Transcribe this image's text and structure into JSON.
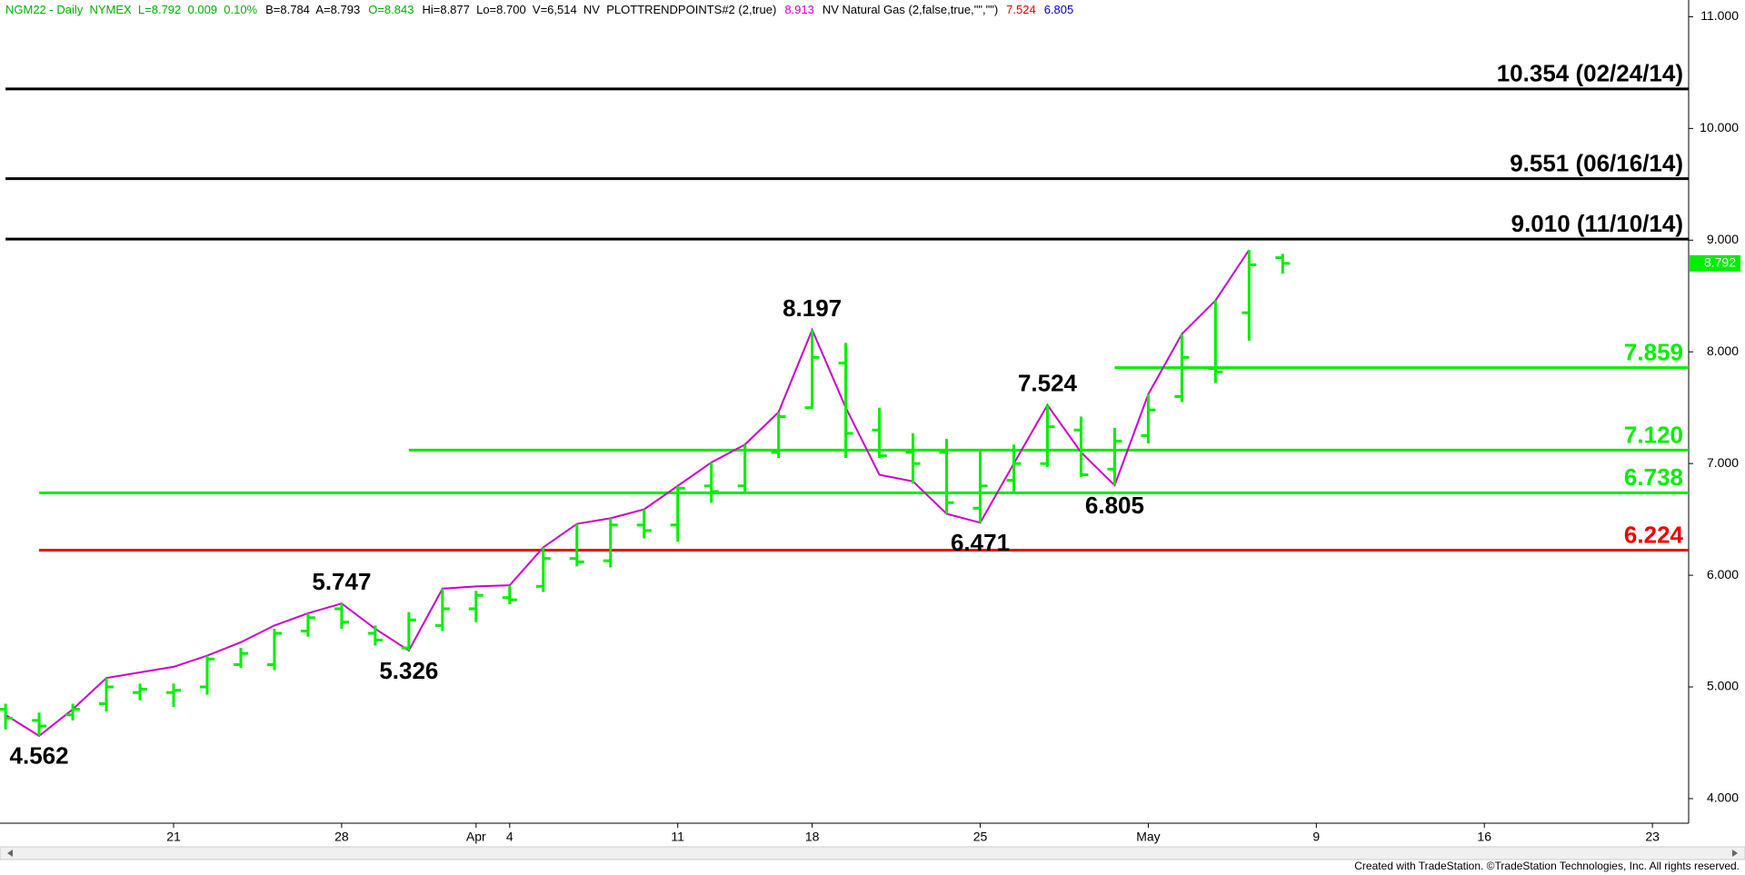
{
  "header": {
    "items": [
      {
        "text": "NGM22 - Daily  NYMEX  L=8.792  0.009  0.10%",
        "color": "#00b000"
      },
      {
        "text": "B=8.784  A=8.793",
        "color": "#000000"
      },
      {
        "text": "O=8.843",
        "color": "#00b000"
      },
      {
        "text": "Hi=8.877  Lo=8.700  V=6,514  NV  PLOTTRENDPOINTS#2 (2,true)",
        "color": "#000000"
      },
      {
        "text": "8.913",
        "color": "#cc00cc"
      },
      {
        "text": "NV Natural Gas (2,false,true,\"\",\"\")",
        "color": "#000000"
      },
      {
        "text": "7.524",
        "color": "#ee0000"
      },
      {
        "text": "6.805",
        "color": "#0000cc"
      }
    ]
  },
  "chart_data": {
    "type": "ohlc",
    "categories": [
      null,
      null,
      null,
      null,
      null,
      "21",
      null,
      null,
      null,
      null,
      "28",
      null,
      null,
      null,
      "Apr",
      "4",
      null,
      null,
      null,
      null,
      "11",
      null,
      null,
      null,
      "18",
      null,
      null,
      null,
      null,
      "25",
      null,
      null,
      null,
      null,
      "May",
      null,
      null,
      null,
      null,
      "9",
      null,
      null,
      null,
      null,
      "16",
      null,
      null,
      null,
      null,
      "23"
    ],
    "color": "#00ee00",
    "open": [
      4.8,
      4.7,
      4.75,
      4.85,
      4.95,
      4.95,
      5.0,
      5.2,
      5.2,
      5.5,
      5.7,
      5.48,
      5.35,
      5.55,
      5.7,
      5.8,
      5.9,
      6.15,
      6.13,
      6.45,
      6.45,
      6.8,
      6.8,
      7.1,
      7.5,
      7.9,
      7.3,
      7.1,
      7.1,
      6.6,
      6.85,
      7.0,
      7.3,
      6.95,
      7.25,
      7.6,
      7.85,
      8.35,
      8.843,
      null,
      null,
      null,
      null,
      null,
      null,
      null,
      null,
      null,
      null,
      null
    ],
    "high": [
      4.85,
      4.77,
      4.85,
      5.08,
      5.03,
      5.03,
      5.28,
      5.35,
      5.52,
      5.66,
      5.747,
      5.55,
      5.67,
      5.88,
      5.86,
      5.91,
      6.25,
      6.46,
      6.51,
      6.59,
      6.8,
      7.01,
      7.17,
      7.46,
      8.197,
      8.08,
      7.5,
      7.27,
      7.22,
      7.12,
      7.17,
      7.524,
      7.42,
      7.32,
      7.62,
      8.16,
      8.46,
      8.913,
      8.877,
      null,
      null,
      null,
      null,
      null,
      null,
      null,
      null,
      null,
      null,
      null
    ],
    "low": [
      4.62,
      4.562,
      4.7,
      4.78,
      4.88,
      4.82,
      4.93,
      5.17,
      5.15,
      5.45,
      5.52,
      5.37,
      5.326,
      5.5,
      5.58,
      5.74,
      5.85,
      6.08,
      6.07,
      6.33,
      6.3,
      6.65,
      6.75,
      7.05,
      7.49,
      7.05,
      7.05,
      6.82,
      6.55,
      6.471,
      6.75,
      6.97,
      6.88,
      6.805,
      7.18,
      7.55,
      7.72,
      8.1,
      8.7,
      null,
      null,
      null,
      null,
      null,
      null,
      null,
      null,
      null,
      null,
      null
    ],
    "close": [
      4.72,
      4.65,
      4.8,
      5.0,
      4.98,
      4.97,
      5.25,
      5.3,
      5.48,
      5.62,
      5.58,
      5.42,
      5.6,
      5.7,
      5.82,
      5.78,
      6.15,
      6.12,
      6.45,
      6.4,
      6.78,
      6.75,
      7.12,
      7.42,
      7.95,
      7.27,
      7.07,
      7.0,
      6.65,
      6.8,
      7.0,
      7.33,
      6.9,
      7.2,
      7.48,
      7.95,
      7.82,
      8.78,
      8.792,
      null,
      null,
      null,
      null,
      null,
      null,
      null,
      null,
      null,
      null,
      null
    ],
    "trend": {
      "color": "#cc00cc",
      "values": [
        4.75,
        4.562,
        4.8,
        5.08,
        5.13,
        5.18,
        5.28,
        5.4,
        5.55,
        5.66,
        5.747,
        5.52,
        5.326,
        5.88,
        5.9,
        5.91,
        6.25,
        6.46,
        6.51,
        6.59,
        6.8,
        7.01,
        7.17,
        7.46,
        8.197,
        7.5,
        6.9,
        6.84,
        6.55,
        6.471,
        7.0,
        7.524,
        7.1,
        6.805,
        7.62,
        8.16,
        8.46,
        8.913,
        null,
        null,
        null,
        null,
        null,
        null,
        null,
        null,
        null,
        null,
        null,
        null
      ],
      "value_labels": [
        null,
        "4.562",
        null,
        null,
        null,
        null,
        null,
        null,
        null,
        null,
        "5.747",
        null,
        "5.326",
        null,
        null,
        null,
        null,
        null,
        null,
        null,
        null,
        null,
        null,
        null,
        "8.197",
        null,
        null,
        null,
        null,
        "6.471",
        null,
        "7.524",
        null,
        "6.805",
        null,
        null,
        null,
        null,
        null,
        null,
        null,
        null,
        null,
        null,
        null,
        null,
        null,
        null,
        null,
        null
      ]
    },
    "levels": [
      {
        "value": 10.354,
        "label": "10.354 (02/24/14)",
        "color": "#000000",
        "from": 0
      },
      {
        "value": 9.551,
        "label": "9.551 (06/16/14)",
        "color": "#000000",
        "from": 0
      },
      {
        "value": 9.01,
        "label": "9.010 (11/10/14)",
        "color": "#000000",
        "from": 0
      },
      {
        "value": 7.859,
        "label": "7.859",
        "color": "#00ee00",
        "from": 33
      },
      {
        "value": 7.12,
        "label": "7.120",
        "color": "#00ee00",
        "from": 12
      },
      {
        "value": 6.738,
        "label": "6.738",
        "color": "#00ee00",
        "from": 1
      },
      {
        "value": 6.224,
        "label": "6.224",
        "color": "#ee0000",
        "from": 1
      }
    ],
    "last_price": 8.792,
    "ylim": [
      3.78,
      11.15
    ],
    "yticks": [
      {
        "value": 4,
        "label": "4.000"
      },
      {
        "value": 5,
        "label": "5.000"
      },
      {
        "value": 6,
        "label": "6.000"
      },
      {
        "value": 7,
        "label": "7.000"
      },
      {
        "value": 8,
        "label": "8.000"
      },
      {
        "value": 9,
        "label": "9.000"
      },
      {
        "value": 10,
        "label": "10.000"
      },
      {
        "value": 11,
        "label": "11.000"
      }
    ]
  },
  "footer": "Created with TradeStation. ©TradeStation Technologies, Inc. All rights reserved."
}
